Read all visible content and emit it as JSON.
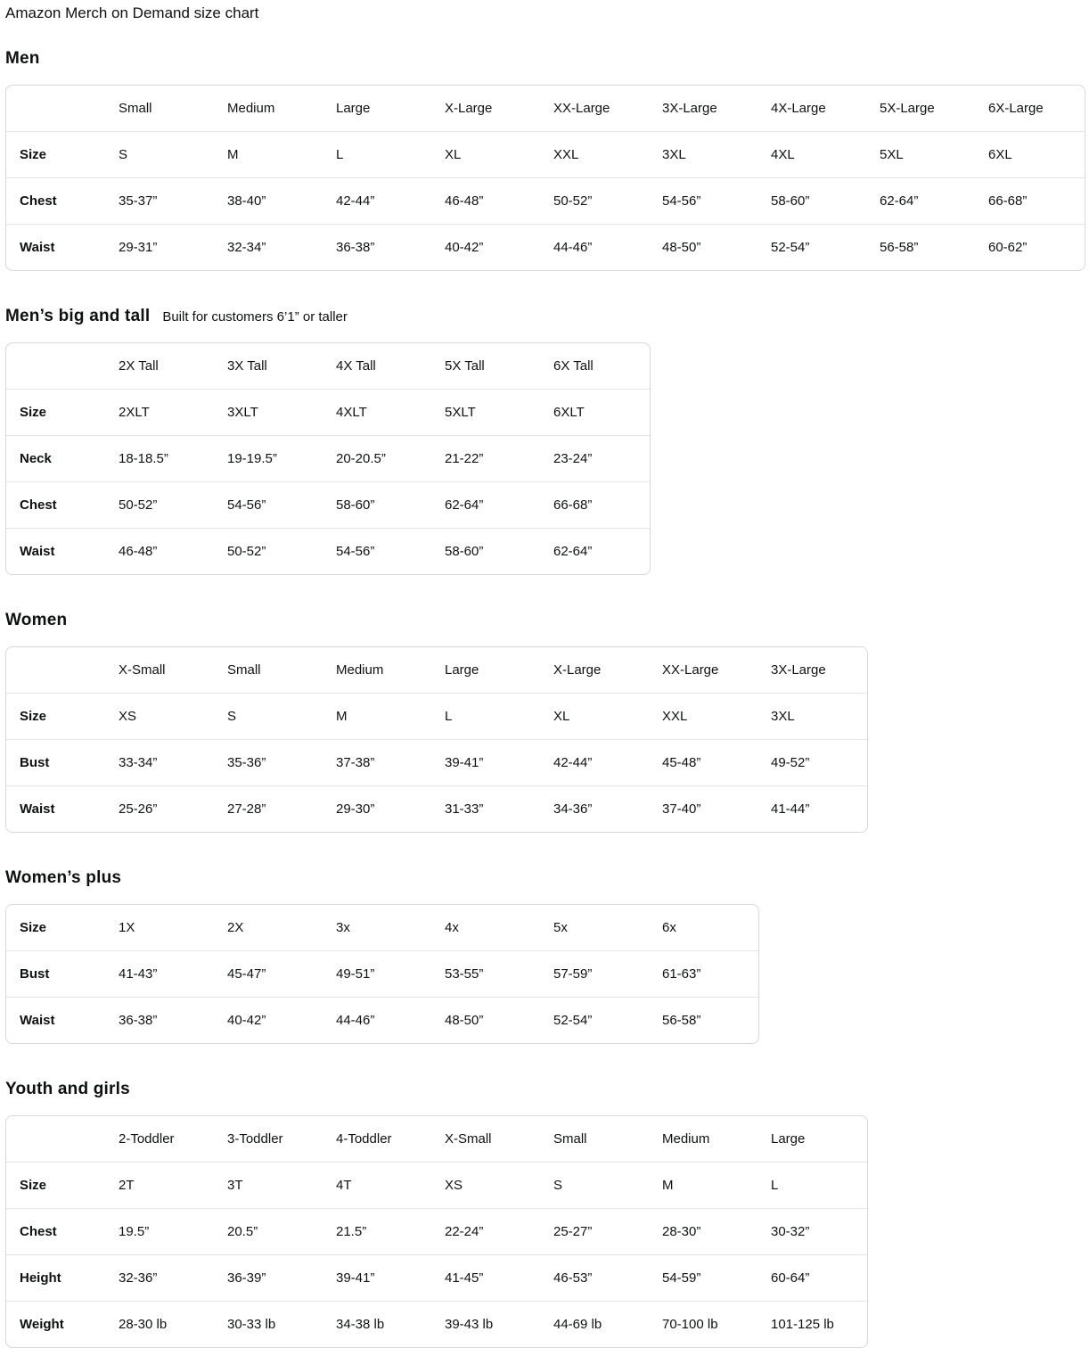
{
  "title": "Amazon Merch on Demand size chart",
  "colors": {
    "text": "#0f1111",
    "table_border": "#d5d9d9",
    "row_divider": "#e3e6e6",
    "background": "#ffffff"
  },
  "sections": [
    {
      "id": "men",
      "heading": "Men",
      "subtitle": null,
      "columns": [
        "Small",
        "Medium",
        "Large",
        "X-Large",
        "XX-Large",
        "3X-Large",
        "4X-Large",
        "5X-Large",
        "6X-Large"
      ],
      "rows": [
        {
          "label": "Size",
          "values": [
            "S",
            "M",
            "L",
            "XL",
            "XXL",
            "3XL",
            "4XL",
            "5XL",
            "6XL"
          ]
        },
        {
          "label": "Chest",
          "values": [
            "35-37”",
            "38-40”",
            "42-44”",
            "46-48”",
            "50-52”",
            "54-56”",
            "58-60”",
            "62-64”",
            "66-68”"
          ]
        },
        {
          "label": "Waist",
          "values": [
            "29-31”",
            "32-34”",
            "36-38”",
            "40-42”",
            "44-46”",
            "48-50”",
            "52-54”",
            "56-58”",
            "60-62”"
          ]
        }
      ]
    },
    {
      "id": "mens-big-and-tall",
      "heading": "Men’s big and tall",
      "subtitle": "Built for customers 6’1” or taller",
      "columns": [
        "2X Tall",
        "3X Tall",
        "4X Tall",
        "5X Tall",
        "6X Tall"
      ],
      "rows": [
        {
          "label": "Size",
          "values": [
            "2XLT",
            "3XLT",
            "4XLT",
            "5XLT",
            "6XLT"
          ]
        },
        {
          "label": "Neck",
          "values": [
            "18-18.5”",
            "19-19.5”",
            "20-20.5”",
            "21-22”",
            "23-24”"
          ]
        },
        {
          "label": "Chest",
          "values": [
            "50-52”",
            "54-56”",
            "58-60”",
            "62-64”",
            "66-68”"
          ]
        },
        {
          "label": "Waist",
          "values": [
            "46-48”",
            "50-52”",
            "54-56”",
            "58-60”",
            "62-64”"
          ]
        }
      ]
    },
    {
      "id": "women",
      "heading": "Women",
      "subtitle": null,
      "columns": [
        "X-Small",
        "Small",
        "Medium",
        "Large",
        "X-Large",
        "XX-Large",
        "3X-Large"
      ],
      "rows": [
        {
          "label": "Size",
          "values": [
            "XS",
            "S",
            "M",
            "L",
            "XL",
            "XXL",
            "3XL"
          ]
        },
        {
          "label": "Bust",
          "values": [
            "33-34”",
            "35-36”",
            "37-38”",
            "39-41”",
            "42-44”",
            "45-48”",
            "49-52”"
          ]
        },
        {
          "label": "Waist",
          "values": [
            "25-26”",
            "27-28”",
            "29-30”",
            "31-33”",
            "34-36”",
            "37-40”",
            "41-44”"
          ]
        }
      ]
    },
    {
      "id": "womens-plus",
      "heading": "Women’s plus",
      "subtitle": null,
      "columns": null,
      "rows": [
        {
          "label": "Size",
          "values": [
            "1X",
            "2X",
            "3x",
            "4x",
            "5x",
            "6x"
          ]
        },
        {
          "label": "Bust",
          "values": [
            "41-43”",
            "45-47”",
            "49-51”",
            "53-55”",
            "57-59”",
            "61-63”"
          ]
        },
        {
          "label": "Waist",
          "values": [
            "36-38”",
            "40-42”",
            "44-46”",
            "48-50”",
            "52-54”",
            "56-58”"
          ]
        }
      ]
    },
    {
      "id": "youth-and-girls",
      "heading": "Youth and girls",
      "subtitle": null,
      "columns": [
        "2-Toddler",
        "3-Toddler",
        "4-Toddler",
        "X-Small",
        "Small",
        "Medium",
        "Large"
      ],
      "rows": [
        {
          "label": "Size",
          "values": [
            "2T",
            "3T",
            "4T",
            "XS",
            "S",
            "M",
            "L"
          ]
        },
        {
          "label": "Chest",
          "values": [
            "19.5”",
            "20.5”",
            "21.5”",
            "22-24”",
            "25-27”",
            "28-30”",
            "30-32”"
          ]
        },
        {
          "label": "Height",
          "values": [
            "32-36”",
            "36-39”",
            "39-41”",
            "41-45”",
            "46-53”",
            "54-59”",
            "60-64”"
          ]
        },
        {
          "label": "Weight",
          "values": [
            "28-30 lb",
            "30-33 lb",
            "34-38 lb",
            "39-43 lb",
            "44-69 lb",
            "70-100 lb",
            "101-125 lb"
          ]
        }
      ]
    }
  ]
}
